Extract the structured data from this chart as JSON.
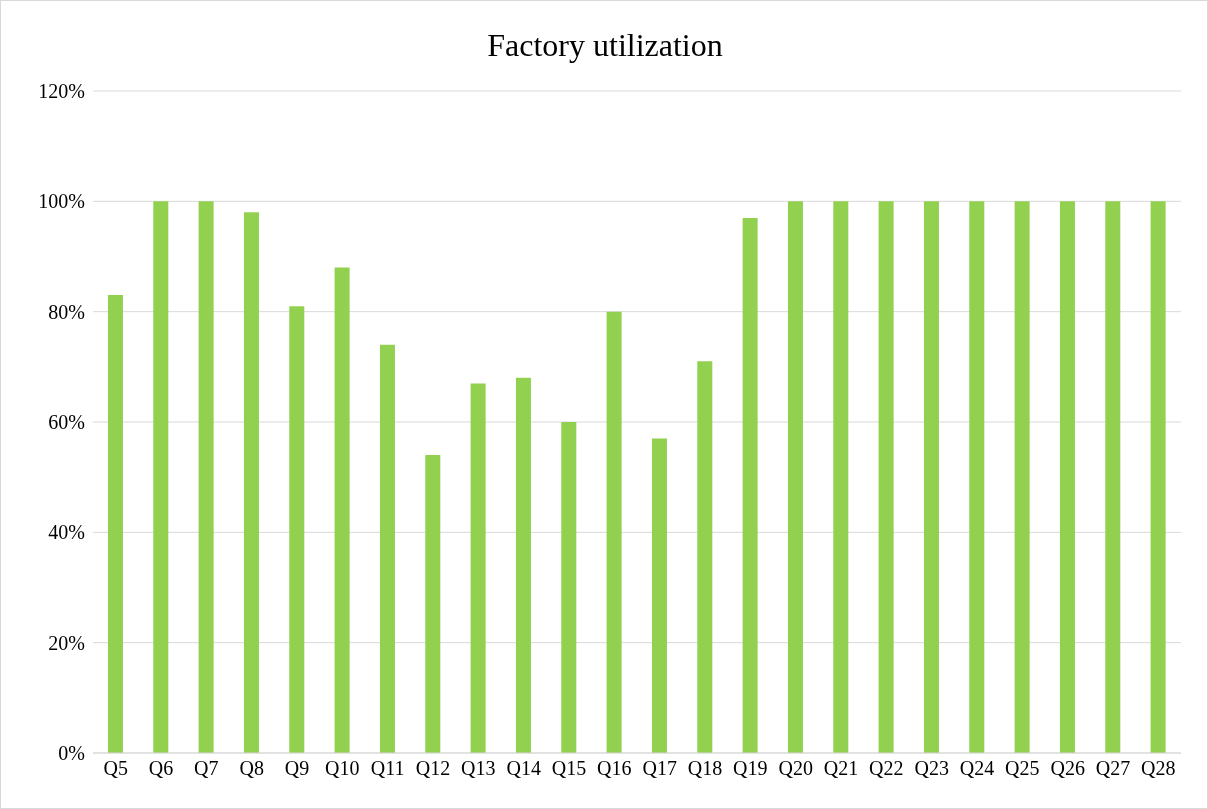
{
  "chart_data": {
    "type": "bar",
    "title": "Factory utilization",
    "categories": [
      "Q5",
      "Q6",
      "Q7",
      "Q8",
      "Q9",
      "Q10",
      "Q11",
      "Q12",
      "Q13",
      "Q14",
      "Q15",
      "Q16",
      "Q17",
      "Q18",
      "Q19",
      "Q20",
      "Q21",
      "Q22",
      "Q23",
      "Q24",
      "Q25",
      "Q26",
      "Q27",
      "Q28"
    ],
    "values": [
      83,
      100,
      100,
      98,
      81,
      88,
      74,
      54,
      67,
      68,
      60,
      80,
      57,
      71,
      97,
      100,
      100,
      100,
      100,
      100,
      100,
      100,
      100,
      100
    ],
    "color": "#92d050",
    "ylim": [
      0,
      120
    ],
    "yticks": [
      {
        "value": 0,
        "label": "0%"
      },
      {
        "value": 20,
        "label": "20%"
      },
      {
        "value": 40,
        "label": "40%"
      },
      {
        "value": 60,
        "label": "60%"
      },
      {
        "value": 80,
        "label": "80%"
      },
      {
        "value": 100,
        "label": "100%"
      },
      {
        "value": 120,
        "label": "120%"
      }
    ],
    "grid": "y"
  }
}
